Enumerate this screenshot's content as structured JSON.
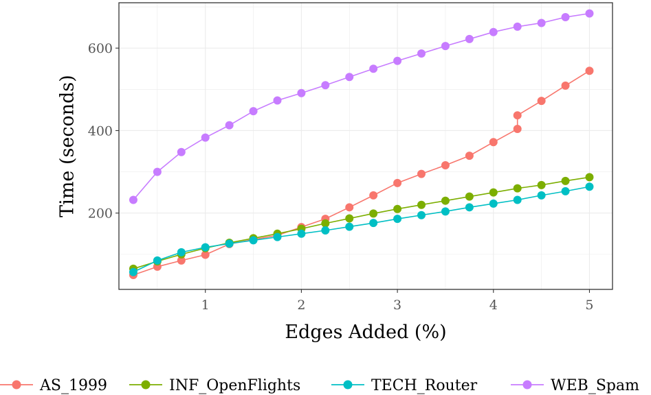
{
  "chart_data": {
    "type": "line",
    "title": "",
    "xlabel": "Edges Added (%)",
    "ylabel": "Time (seconds)",
    "xlim": [
      0.1,
      5.24
    ],
    "ylim": [
      15,
      710
    ],
    "xticks": [
      1,
      2,
      3,
      4,
      5
    ],
    "xtick_labels": [
      "1",
      "2",
      "3",
      "4",
      "5"
    ],
    "yticks": [
      200,
      400,
      600
    ],
    "ytick_labels": [
      "200",
      "400",
      "600"
    ],
    "grid": true,
    "legend_position": "bottom",
    "series": [
      {
        "name": "AS_1999",
        "color": "#F8766D",
        "x": [
          0.25,
          0.5,
          0.75,
          1.0,
          1.25,
          1.5,
          1.75,
          2.0,
          2.25,
          2.5,
          2.75,
          3.0,
          3.25,
          3.5,
          3.75,
          4.0,
          4.25,
          4.25,
          4.5,
          4.75,
          5.0
        ],
        "y": [
          50,
          70,
          85,
          99,
          125,
          136,
          146,
          166,
          186,
          214,
          243,
          273,
          295,
          316,
          339,
          372,
          404,
          437,
          472,
          509,
          545
        ]
      },
      {
        "name": "INF_OpenFlights",
        "color": "#7CAE00",
        "x": [
          0.25,
          0.5,
          0.75,
          1.0,
          1.25,
          1.5,
          1.75,
          2.0,
          2.25,
          2.5,
          2.75,
          3.0,
          3.25,
          3.5,
          3.75,
          4.0,
          4.25,
          4.5,
          4.75,
          5.0
        ],
        "y": [
          65,
          83,
          100,
          115,
          128,
          139,
          150,
          162,
          175,
          187,
          199,
          210,
          220,
          230,
          240,
          250,
          260,
          268,
          278,
          287
        ]
      },
      {
        "name": "TECH_Router",
        "color": "#00BFC4",
        "x": [
          0.25,
          0.5,
          0.75,
          1.0,
          1.25,
          1.5,
          1.75,
          2.0,
          2.25,
          2.5,
          2.75,
          3.0,
          3.25,
          3.5,
          3.75,
          4.0,
          4.25,
          4.5,
          4.75,
          5.0
        ],
        "y": [
          57,
          85,
          105,
          117,
          126,
          134,
          142,
          150,
          158,
          167,
          176,
          186,
          195,
          204,
          214,
          223,
          232,
          243,
          253,
          264
        ]
      },
      {
        "name": "WEB_Spam",
        "color": "#C77CFF",
        "x": [
          0.25,
          0.5,
          0.75,
          1.0,
          1.25,
          1.5,
          1.75,
          2.0,
          2.25,
          2.5,
          2.75,
          3.0,
          3.25,
          3.5,
          3.75,
          4.0,
          4.25,
          4.5,
          4.75,
          5.0
        ],
        "y": [
          232,
          300,
          348,
          383,
          413,
          447,
          473,
          491,
          510,
          530,
          550,
          569,
          587,
          605,
          622,
          639,
          652,
          661,
          675,
          684
        ]
      }
    ]
  }
}
